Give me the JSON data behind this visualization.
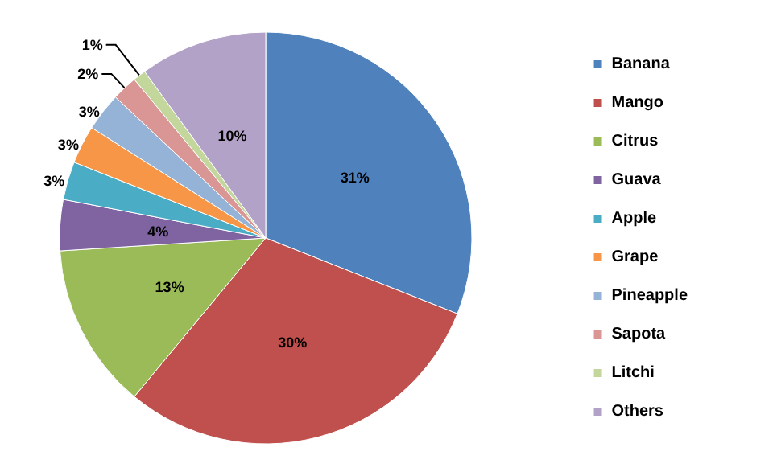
{
  "chart_data": {
    "type": "pie",
    "categories": [
      "Banana",
      "Mango",
      "Citrus",
      "Guava",
      "Apple",
      "Grape",
      "Pineapple",
      "Sapota",
      "Litchi",
      "Others"
    ],
    "values": [
      31,
      30,
      13,
      4,
      3,
      3,
      3,
      2,
      1,
      10
    ],
    "colors": [
      "#4f81bd",
      "#c0504d",
      "#9bbb59",
      "#8064a2",
      "#4bacc6",
      "#f79646",
      "#95b3d7",
      "#d99694",
      "#c3d69b",
      "#b3a2c7"
    ],
    "value_labels": [
      "31%",
      "30%",
      "13%",
      "4%",
      "3%",
      "3%",
      "3%",
      "2%",
      "1%",
      "10%"
    ],
    "legend": "right"
  }
}
